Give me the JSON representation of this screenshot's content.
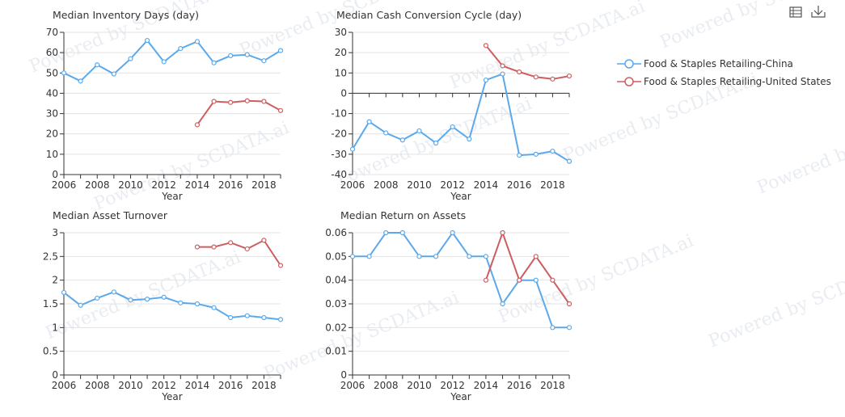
{
  "toolbar": {
    "table_icon": "data-view-icon",
    "download_icon": "download-icon"
  },
  "watermark": "Powered by SCDATA.ai",
  "legend": [
    {
      "label": "Food & Staples Retailing-China",
      "color": "#5aa9ec"
    },
    {
      "label": "Food & Staples Retailing-United States",
      "color": "#cd5e60"
    }
  ],
  "chart_data": [
    {
      "type": "line",
      "title": "Median Inventory Days (day)",
      "xlabel": "Year",
      "ylabel": "",
      "xlim": [
        2006,
        2019
      ],
      "xticks": [
        "2006",
        "2008",
        "2010",
        "2012",
        "2014",
        "2016",
        "2018"
      ],
      "ylim": [
        0,
        70
      ],
      "yticks": [
        "0",
        "10",
        "20",
        "30",
        "40",
        "50",
        "60",
        "70"
      ],
      "series": [
        {
          "name": "Food & Staples Retailing-China",
          "x": [
            2006,
            2007,
            2008,
            2009,
            2010,
            2011,
            2012,
            2013,
            2014,
            2015,
            2016,
            2017,
            2018,
            2019
          ],
          "y": [
            50,
            46,
            54,
            49.5,
            57,
            66,
            55.5,
            62,
            65.5,
            55,
            58.5,
            59,
            56,
            61
          ]
        },
        {
          "name": "Food & Staples Retailing-United States",
          "x": [
            2014,
            2015,
            2016,
            2017,
            2018,
            2019
          ],
          "y": [
            24.5,
            36,
            35.5,
            36.3,
            36,
            31.5
          ]
        }
      ]
    },
    {
      "type": "line",
      "title": "Median Cash Conversion Cycle (day)",
      "xlabel": "Year",
      "ylabel": "",
      "xlim": [
        2006,
        2019
      ],
      "xticks": [
        "2006",
        "2008",
        "2010",
        "2012",
        "2014",
        "2016",
        "2018"
      ],
      "ylim": [
        -40,
        30
      ],
      "yticks": [
        "-40",
        "-30",
        "-20",
        "-10",
        "0",
        "10",
        "20",
        "30"
      ],
      "series": [
        {
          "name": "Food & Staples Retailing-China",
          "x": [
            2006,
            2007,
            2008,
            2009,
            2010,
            2011,
            2012,
            2013,
            2014,
            2015,
            2016,
            2017,
            2018,
            2019
          ],
          "y": [
            -27.5,
            -14,
            -19.5,
            -23,
            -18.5,
            -24.5,
            -16.5,
            -22.5,
            6.5,
            9.5,
            -30.5,
            -30,
            -28.5,
            -33.5
          ]
        },
        {
          "name": "Food & Staples Retailing-United States",
          "x": [
            2014,
            2015,
            2016,
            2017,
            2018,
            2019
          ],
          "y": [
            23.5,
            13.5,
            10.5,
            8,
            7,
            8.5
          ]
        }
      ]
    },
    {
      "type": "line",
      "title": "Median Asset Turnover",
      "xlabel": "Year",
      "ylabel": "",
      "xlim": [
        2006,
        2019
      ],
      "xticks": [
        "2006",
        "2008",
        "2010",
        "2012",
        "2014",
        "2016",
        "2018"
      ],
      "ylim": [
        0,
        3
      ],
      "yticks": [
        "0",
        "0.5",
        "1",
        "1.5",
        "2",
        "2.5",
        "3"
      ],
      "series": [
        {
          "name": "Food & Staples Retailing-China",
          "x": [
            2006,
            2007,
            2008,
            2009,
            2010,
            2011,
            2012,
            2013,
            2014,
            2015,
            2016,
            2017,
            2018,
            2019
          ],
          "y": [
            1.74,
            1.47,
            1.62,
            1.75,
            1.58,
            1.6,
            1.64,
            1.52,
            1.5,
            1.42,
            1.21,
            1.25,
            1.21,
            1.17
          ]
        },
        {
          "name": "Food & Staples Retailing-United States",
          "x": [
            2014,
            2015,
            2016,
            2017,
            2018,
            2019
          ],
          "y": [
            2.7,
            2.7,
            2.79,
            2.66,
            2.84,
            2.31
          ]
        }
      ]
    },
    {
      "type": "line",
      "title": "Median Return on Assets",
      "xlabel": "Year",
      "ylabel": "",
      "xlim": [
        2006,
        2019
      ],
      "xticks": [
        "2006",
        "2008",
        "2010",
        "2012",
        "2014",
        "2016",
        "2018"
      ],
      "ylim": [
        0,
        0.06
      ],
      "yticks": [
        "0",
        "0.01",
        "0.02",
        "0.03",
        "0.04",
        "0.05",
        "0.06"
      ],
      "series": [
        {
          "name": "Food & Staples Retailing-China",
          "x": [
            2006,
            2007,
            2008,
            2009,
            2010,
            2011,
            2012,
            2013,
            2014,
            2015,
            2016,
            2017,
            2018,
            2019
          ],
          "y": [
            0.05,
            0.05,
            0.06,
            0.06,
            0.05,
            0.05,
            0.06,
            0.05,
            0.05,
            0.03,
            0.04,
            0.04,
            0.02,
            0.02
          ]
        },
        {
          "name": "Food & Staples Retailing-United States",
          "x": [
            2014,
            2015,
            2016,
            2017,
            2018,
            2019
          ],
          "y": [
            0.04,
            0.06,
            0.04,
            0.05,
            0.04,
            0.03
          ]
        }
      ]
    }
  ]
}
